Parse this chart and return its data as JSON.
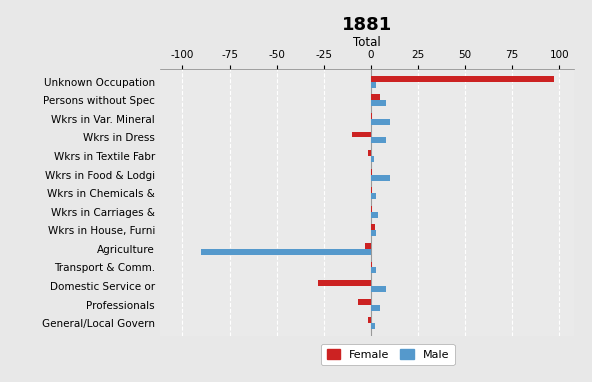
{
  "title": "1881",
  "xlabel": "Total",
  "categories": [
    "Unknown Occupation",
    "Persons without Spec",
    "Wkrs in Var. Mineral",
    "Wkrs in Dress",
    "Wkrs in Textile Fabr",
    "Wkrs in Food & Lodgi",
    "Wkrs in Chemicals &",
    "Wkrs in Carriages &",
    "Wkrs in House, Furni",
    "Agriculture",
    "Transport & Comm.",
    "Domestic Service or",
    "Professionals",
    "General/Local Govern"
  ],
  "female_values": [
    97,
    5,
    0.5,
    -10,
    -1.5,
    0.5,
    0.5,
    0.5,
    2,
    -3,
    0.5,
    -28,
    -7,
    -1.5
  ],
  "male_values": [
    3,
    8,
    10,
    8,
    1.5,
    10,
    2.5,
    4,
    3,
    -90,
    3,
    8,
    5,
    2
  ],
  "female_color": "#cc2222",
  "male_color": "#5599cc",
  "background_color": "#e8e8e8",
  "plot_bg_color": "#eaeaea",
  "xlim": [
    -112,
    108
  ],
  "xticks": [
    -100,
    -75,
    -50,
    -25,
    0,
    25,
    50,
    75,
    100
  ],
  "bar_height": 0.32,
  "title_fontsize": 13,
  "label_fontsize": 7.5,
  "tick_fontsize": 7.5
}
